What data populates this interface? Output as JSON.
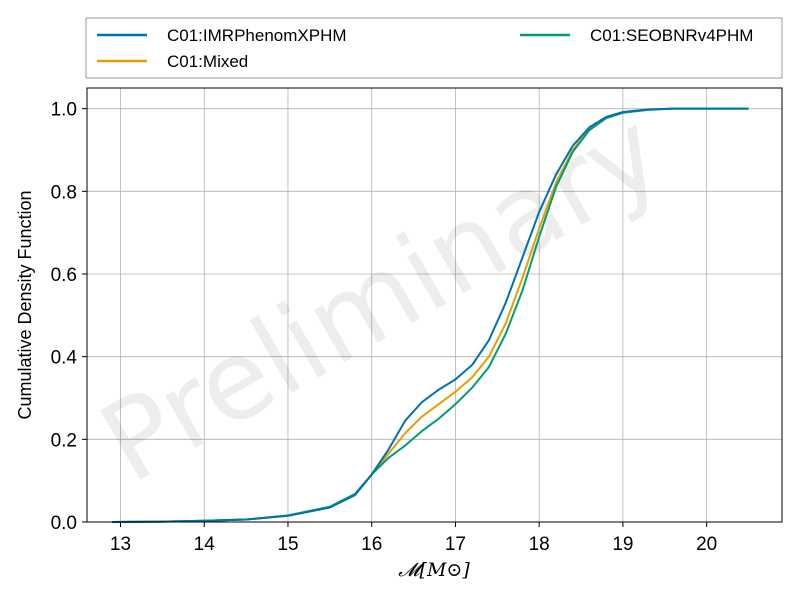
{
  "chart_data": {
    "type": "line",
    "title": "",
    "xlabel": "𝓜[M⊙]",
    "ylabel": "Cumulative Density Function",
    "xlim": [
      12.6,
      20.9
    ],
    "ylim": [
      0,
      1.05
    ],
    "xticks": [
      13,
      14,
      15,
      16,
      17,
      18,
      19,
      20
    ],
    "xtick_labels": [
      "13",
      "14",
      "15",
      "16",
      "17",
      "18",
      "19",
      "20"
    ],
    "yticks": [
      0,
      0.2,
      0.4,
      0.6,
      0.8,
      1.0
    ],
    "ytick_labels": [
      "0.0",
      "0.2",
      "0.4",
      "0.6",
      "0.8",
      "1.0"
    ],
    "grid": true,
    "legend_placement": "top, outside plot, two columns",
    "watermark": "Preliminary",
    "series": [
      {
        "name": "C01:IMRPhenomXPHM",
        "color": "#0072b2",
        "points": [
          [
            12.9,
            0.0
          ],
          [
            13.5,
            0.001
          ],
          [
            14.0,
            0.003
          ],
          [
            14.5,
            0.006
          ],
          [
            15.0,
            0.015
          ],
          [
            15.5,
            0.035
          ],
          [
            15.8,
            0.065
          ],
          [
            16.0,
            0.115
          ],
          [
            16.2,
            0.175
          ],
          [
            16.4,
            0.245
          ],
          [
            16.6,
            0.29
          ],
          [
            16.8,
            0.32
          ],
          [
            17.0,
            0.345
          ],
          [
            17.2,
            0.38
          ],
          [
            17.4,
            0.44
          ],
          [
            17.6,
            0.53
          ],
          [
            17.8,
            0.64
          ],
          [
            18.0,
            0.75
          ],
          [
            18.2,
            0.84
          ],
          [
            18.4,
            0.91
          ],
          [
            18.6,
            0.955
          ],
          [
            18.8,
            0.98
          ],
          [
            19.0,
            0.992
          ],
          [
            19.3,
            0.998
          ],
          [
            19.6,
            1.0
          ],
          [
            20.5,
            1.0
          ]
        ]
      },
      {
        "name": "C01:Mixed",
        "color": "#e69f00",
        "points": [
          [
            12.9,
            0.0
          ],
          [
            13.5,
            0.001
          ],
          [
            14.0,
            0.003
          ],
          [
            14.5,
            0.006
          ],
          [
            15.0,
            0.015
          ],
          [
            15.5,
            0.035
          ],
          [
            15.8,
            0.065
          ],
          [
            16.0,
            0.115
          ],
          [
            16.2,
            0.165
          ],
          [
            16.4,
            0.215
          ],
          [
            16.6,
            0.255
          ],
          [
            16.8,
            0.285
          ],
          [
            17.0,
            0.315
          ],
          [
            17.2,
            0.35
          ],
          [
            17.4,
            0.4
          ],
          [
            17.6,
            0.48
          ],
          [
            17.8,
            0.59
          ],
          [
            18.0,
            0.71
          ],
          [
            18.2,
            0.82
          ],
          [
            18.4,
            0.9
          ],
          [
            18.6,
            0.95
          ],
          [
            18.8,
            0.978
          ],
          [
            19.0,
            0.991
          ],
          [
            19.3,
            0.998
          ],
          [
            19.6,
            1.0
          ],
          [
            20.5,
            1.0
          ]
        ]
      },
      {
        "name": "C01:SEOBNRv4PHM",
        "color": "#009e73",
        "points": [
          [
            12.9,
            0.0
          ],
          [
            13.5,
            0.001
          ],
          [
            14.0,
            0.003
          ],
          [
            14.5,
            0.006
          ],
          [
            15.0,
            0.016
          ],
          [
            15.5,
            0.037
          ],
          [
            15.8,
            0.068
          ],
          [
            16.0,
            0.115
          ],
          [
            16.2,
            0.155
          ],
          [
            16.4,
            0.185
          ],
          [
            16.6,
            0.22
          ],
          [
            16.8,
            0.25
          ],
          [
            17.0,
            0.285
          ],
          [
            17.2,
            0.325
          ],
          [
            17.4,
            0.375
          ],
          [
            17.6,
            0.455
          ],
          [
            17.8,
            0.56
          ],
          [
            18.0,
            0.69
          ],
          [
            18.2,
            0.81
          ],
          [
            18.4,
            0.895
          ],
          [
            18.6,
            0.948
          ],
          [
            18.8,
            0.977
          ],
          [
            19.0,
            0.99
          ],
          [
            19.3,
            0.997
          ],
          [
            19.6,
            1.0
          ],
          [
            20.5,
            1.0
          ]
        ]
      }
    ]
  }
}
